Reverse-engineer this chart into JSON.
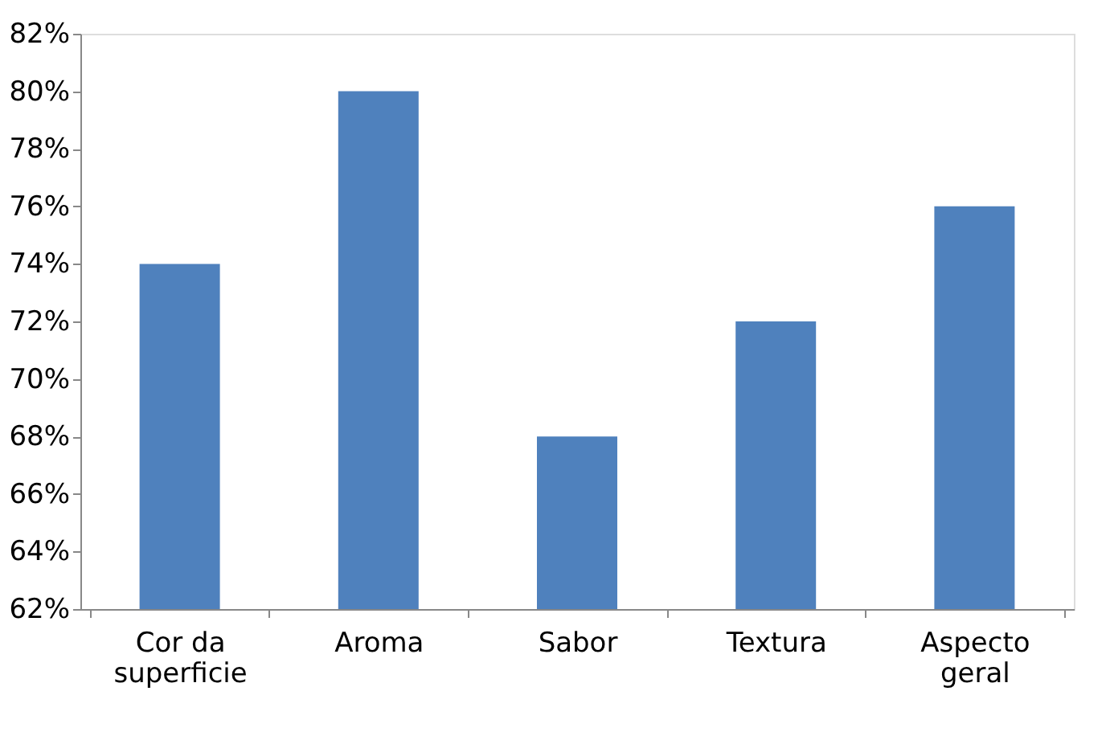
{
  "chart_data": {
    "type": "bar",
    "categories": [
      "Cor da superficie",
      "Aroma",
      "Sabor",
      "Textura",
      "Aspecto geral"
    ],
    "values": [
      74,
      80,
      68,
      72,
      76
    ],
    "color": "#4f81bd",
    "ylim": [
      62,
      82
    ],
    "yticks": [
      {
        "value": 62,
        "label": "62%"
      },
      {
        "value": 64,
        "label": "64%"
      },
      {
        "value": 66,
        "label": "66%"
      },
      {
        "value": 68,
        "label": "68%"
      },
      {
        "value": 70,
        "label": "70%"
      },
      {
        "value": 72,
        "label": "72%"
      },
      {
        "value": 74,
        "label": "74%"
      },
      {
        "value": 76,
        "label": "76%"
      },
      {
        "value": 78,
        "label": "78%"
      },
      {
        "value": 80,
        "label": "80%"
      },
      {
        "value": 82,
        "label": "82%"
      }
    ],
    "grid": false
  }
}
